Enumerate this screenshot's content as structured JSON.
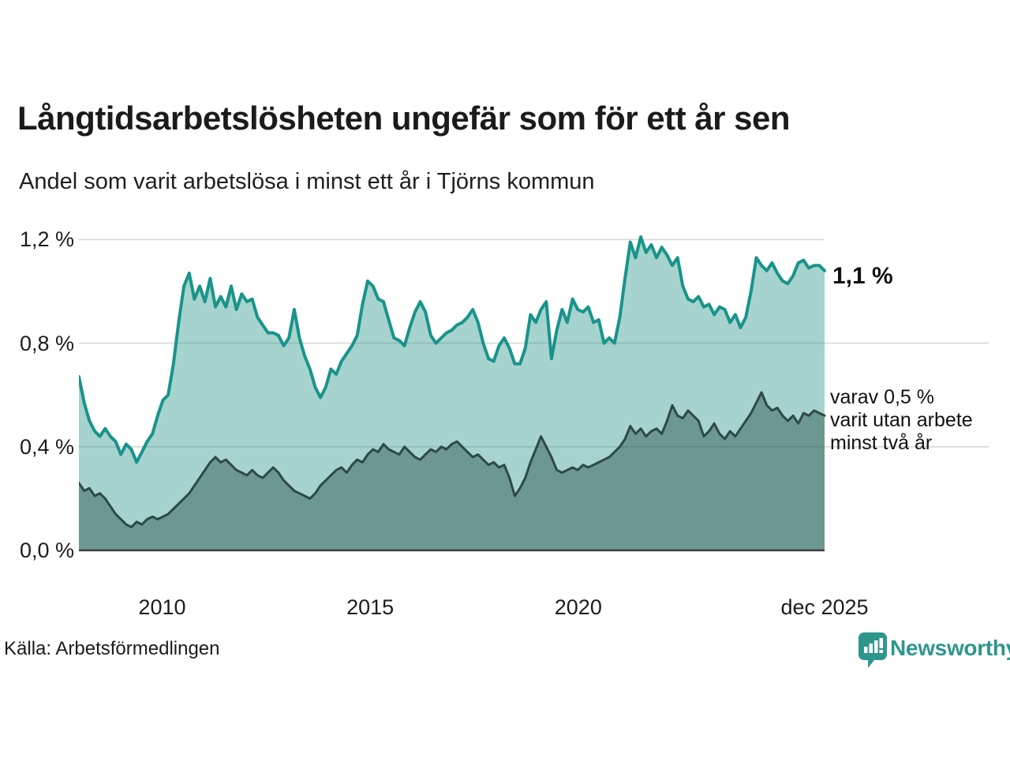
{
  "title": "Långtidsarbetslösheten ungefär som för ett år sen",
  "subtitle": "Andel som varit arbetslösa i minst ett år i Tjörns kommun",
  "source": "Källa: Arbetsförmedlingen",
  "branding": {
    "name": "Newsworthy",
    "color": "#2e968c"
  },
  "annotations": {
    "latest_total": "1,1 %",
    "two_year": {
      "lines": [
        "varav 0,5 %",
        "varit utan arbete",
        "minst två år"
      ]
    }
  },
  "colors": {
    "total_line": "#18948a",
    "total_fill": "rgba(46,150,140,0.42)",
    "two_year_line": "#2d4a45",
    "two_year_fill": "rgba(42,86,76,0.47)",
    "gridline": "#d7d7d7",
    "baseline": "#3f3f3f",
    "text": "#1c1c1c"
  },
  "chart_data": {
    "type": "area",
    "unit": "%",
    "x_start": 2008.0,
    "x_end": 2025.92,
    "ylim": [
      0,
      1.25
    ],
    "grid": true,
    "y_ticks": [
      {
        "value": 1.2,
        "label": "1,2 %"
      },
      {
        "value": 0.8,
        "label": "0,8 %"
      },
      {
        "value": 0.4,
        "label": "0,4 %"
      },
      {
        "value": 0.0,
        "label": "0,0 %"
      }
    ],
    "x_ticks": [
      {
        "year": 2010,
        "label": "2010"
      },
      {
        "year": 2015,
        "label": "2015"
      },
      {
        "year": 2020,
        "label": "2020"
      },
      {
        "year": 2025.92,
        "label": "dec 2025"
      }
    ],
    "series": [
      {
        "name": "arbetslösa minst ett år",
        "latest_value": 1.1,
        "values": [
          0.67,
          0.57,
          0.5,
          0.46,
          0.44,
          0.47,
          0.44,
          0.42,
          0.37,
          0.41,
          0.39,
          0.34,
          0.38,
          0.42,
          0.45,
          0.52,
          0.58,
          0.6,
          0.72,
          0.88,
          1.02,
          1.07,
          0.97,
          1.02,
          0.96,
          1.05,
          0.94,
          0.98,
          0.94,
          1.02,
          0.93,
          0.99,
          0.96,
          0.97,
          0.9,
          0.87,
          0.84,
          0.84,
          0.83,
          0.79,
          0.82,
          0.93,
          0.82,
          0.75,
          0.7,
          0.63,
          0.59,
          0.63,
          0.7,
          0.68,
          0.73,
          0.76,
          0.79,
          0.83,
          0.95,
          1.04,
          1.02,
          0.97,
          0.96,
          0.89,
          0.82,
          0.81,
          0.79,
          0.86,
          0.92,
          0.96,
          0.92,
          0.83,
          0.8,
          0.82,
          0.84,
          0.85,
          0.87,
          0.88,
          0.9,
          0.93,
          0.88,
          0.8,
          0.74,
          0.73,
          0.79,
          0.82,
          0.78,
          0.72,
          0.72,
          0.78,
          0.91,
          0.88,
          0.93,
          0.96,
          0.74,
          0.85,
          0.93,
          0.88,
          0.97,
          0.93,
          0.92,
          0.94,
          0.88,
          0.89,
          0.8,
          0.82,
          0.8,
          0.9,
          1.05,
          1.19,
          1.13,
          1.21,
          1.15,
          1.18,
          1.13,
          1.17,
          1.14,
          1.1,
          1.13,
          1.02,
          0.97,
          0.96,
          0.98,
          0.94,
          0.95,
          0.91,
          0.94,
          0.93,
          0.88,
          0.91,
          0.86,
          0.9,
          1.0,
          1.13,
          1.1,
          1.08,
          1.11,
          1.07,
          1.04,
          1.03,
          1.06,
          1.11,
          1.12,
          1.09,
          1.1,
          1.1,
          1.08
        ]
      },
      {
        "name": "utan arbete minst två år",
        "latest_value": 0.5,
        "values": [
          0.26,
          0.23,
          0.24,
          0.21,
          0.22,
          0.2,
          0.17,
          0.14,
          0.12,
          0.1,
          0.09,
          0.11,
          0.1,
          0.12,
          0.13,
          0.12,
          0.13,
          0.14,
          0.16,
          0.18,
          0.2,
          0.22,
          0.25,
          0.28,
          0.31,
          0.34,
          0.36,
          0.34,
          0.35,
          0.33,
          0.31,
          0.3,
          0.29,
          0.31,
          0.29,
          0.28,
          0.3,
          0.32,
          0.3,
          0.27,
          0.25,
          0.23,
          0.22,
          0.21,
          0.2,
          0.22,
          0.25,
          0.27,
          0.29,
          0.31,
          0.32,
          0.3,
          0.33,
          0.35,
          0.34,
          0.37,
          0.39,
          0.38,
          0.41,
          0.39,
          0.38,
          0.37,
          0.4,
          0.38,
          0.36,
          0.35,
          0.37,
          0.39,
          0.38,
          0.4,
          0.39,
          0.41,
          0.42,
          0.4,
          0.38,
          0.36,
          0.37,
          0.35,
          0.33,
          0.34,
          0.32,
          0.33,
          0.28,
          0.21,
          0.24,
          0.28,
          0.34,
          0.39,
          0.44,
          0.4,
          0.36,
          0.31,
          0.3,
          0.31,
          0.32,
          0.31,
          0.33,
          0.32,
          0.33,
          0.34,
          0.35,
          0.36,
          0.38,
          0.4,
          0.43,
          0.48,
          0.45,
          0.47,
          0.44,
          0.46,
          0.47,
          0.45,
          0.5,
          0.56,
          0.52,
          0.51,
          0.54,
          0.52,
          0.5,
          0.44,
          0.46,
          0.49,
          0.45,
          0.43,
          0.46,
          0.44,
          0.47,
          0.5,
          0.53,
          0.57,
          0.61,
          0.56,
          0.54,
          0.55,
          0.52,
          0.5,
          0.52,
          0.49,
          0.53,
          0.52,
          0.54,
          0.53,
          0.52
        ]
      }
    ]
  }
}
